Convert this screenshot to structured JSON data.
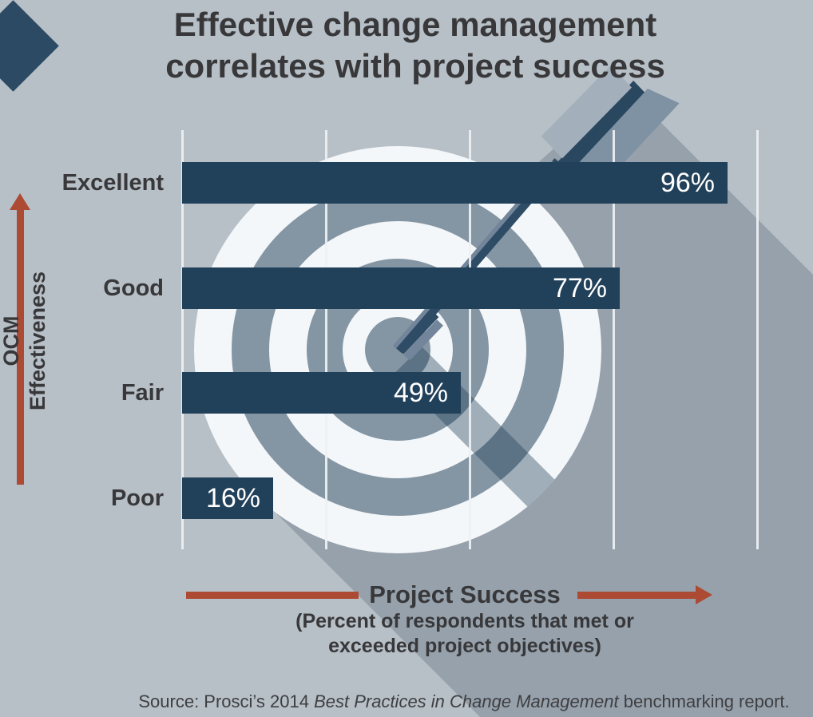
{
  "title": {
    "line1": "Effective change management",
    "line2": "correlates with project success"
  },
  "y_axis": {
    "label_line1": "OCM",
    "label_line2": "Effectiveness"
  },
  "x_axis": {
    "title": "Project Success",
    "subtitle_line1": "(Percent of respondents that met or",
    "subtitle_line2": "exceeded project objectives)"
  },
  "source": {
    "prefix": "Source: Prosci’s 2014 ",
    "italic": "Best Practices in Change Management",
    "suffix": " benchmarking report."
  },
  "chart_data": {
    "type": "bar",
    "orientation": "horizontal",
    "title": "Effective change management correlates with project success",
    "categories": [
      "Excellent",
      "Good",
      "Fair",
      "Poor"
    ],
    "values": [
      96,
      77,
      49,
      16
    ],
    "value_labels": [
      "96%",
      "77%",
      "49%",
      "16%"
    ],
    "xlabel": "Project Success (Percent of respondents that met or exceeded project objectives)",
    "ylabel": "OCM Effectiveness",
    "xlim": [
      0,
      100
    ],
    "gridlines_pct": [
      0,
      25,
      50,
      75,
      100
    ],
    "grid": true,
    "legend": false,
    "bar_color": "#21405a",
    "source": "Source: Prosci’s 2014 Best Practices in Change Management benchmarking report."
  },
  "colors": {
    "bg": "#b7bfc7",
    "shadow": "#96a1ac",
    "navy": "#21405a",
    "arrow-navy": "#2e4c66",
    "ring-gray": "#8495a4",
    "ring-white": "#f4f7f9",
    "red": "#ad4a33",
    "text-dark": "#38383a",
    "value-white": "#ffffff",
    "gridline": "#eef1f3",
    "diamond": "#2c4a63",
    "feather-light": "#a3afbb",
    "feather-mid": "#7e92a3",
    "plate": "#2a4760",
    "highlight": "#72859a",
    "source-color": "#3f3f41"
  }
}
